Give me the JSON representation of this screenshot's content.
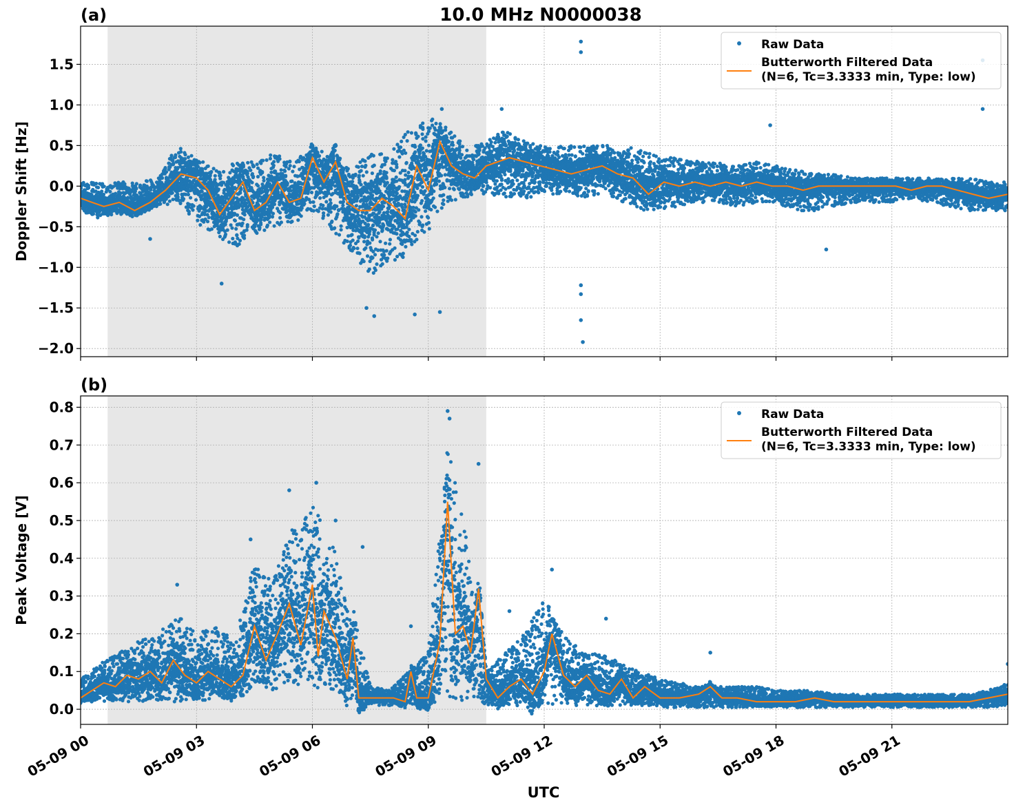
{
  "figure": {
    "title": "10.0 MHz N0000038",
    "xlabel": "UTC"
  },
  "colors": {
    "raw": "#1f77b4",
    "filtered": "#ff7f0e",
    "shade": "#e7e7e7",
    "grid": "#b0b0b0"
  },
  "chart_data": [
    {
      "type": "scatter",
      "panel_label": "(a)",
      "ylabel": "Doppler Shift [Hz]",
      "x_unit": "UTC hour of 2024-05-09 (0-24)",
      "xlim": [
        0,
        24
      ],
      "ylim": [
        -2.1,
        1.97
      ],
      "xticks": [
        0,
        3,
        6,
        9,
        12,
        15,
        18,
        21
      ],
      "xtick_labels": [
        "05-09 00",
        "05-09 03",
        "05-09 06",
        "05-09 09",
        "05-09 12",
        "05-09 15",
        "05-09 18",
        "05-09 21"
      ],
      "yticks": [
        -2.0,
        -1.5,
        -1.0,
        -0.5,
        0.0,
        0.5,
        1.0,
        1.5
      ],
      "ytick_labels": [
        "−2.0",
        "−1.5",
        "−1.0",
        "−0.5",
        "0.0",
        "0.5",
        "1.0",
        "1.5"
      ],
      "grid": true,
      "shaded_interval": [
        0.7,
        10.5
      ],
      "legend": {
        "placement": "top-right",
        "entries": [
          "Raw Data",
          "Butterworth Filtered Data",
          "(N=6, Tc=3.3333 min, Type: low)"
        ]
      },
      "series": [
        {
          "name": "Raw Data",
          "kind": "envelope",
          "x": [
            0,
            0.5,
            1,
            1.5,
            2,
            2.5,
            3,
            3.5,
            4,
            4.5,
            5,
            5.5,
            6,
            6.5,
            7,
            7.5,
            8,
            8.5,
            9,
            9.5,
            10,
            10.5,
            11,
            11.5,
            12,
            12.5,
            13,
            13.5,
            14,
            14.5,
            15,
            15.5,
            16,
            16.5,
            17,
            17.5,
            18,
            18.5,
            19,
            19.5,
            20,
            20.5,
            21,
            21.5,
            22,
            22.5,
            23,
            23.5,
            24
          ],
          "low": [
            -0.3,
            -0.4,
            -0.35,
            -0.3,
            -0.25,
            -0.2,
            -0.45,
            -0.6,
            -0.75,
            -0.6,
            -0.5,
            -0.45,
            -0.35,
            -0.55,
            -0.8,
            -1.1,
            -0.95,
            -0.85,
            -0.55,
            -0.2,
            -0.15,
            -0.1,
            -0.15,
            -0.15,
            -0.1,
            -0.1,
            -0.15,
            -0.1,
            -0.2,
            -0.3,
            -0.3,
            -0.25,
            -0.2,
            -0.2,
            -0.25,
            -0.2,
            -0.2,
            -0.3,
            -0.3,
            -0.25,
            -0.2,
            -0.2,
            -0.2,
            -0.15,
            -0.2,
            -0.25,
            -0.3,
            -0.3,
            -0.3
          ],
          "high": [
            0.05,
            0.05,
            0.05,
            0.05,
            0.1,
            0.5,
            0.35,
            0.2,
            0.3,
            0.3,
            0.4,
            0.3,
            0.5,
            0.35,
            0.25,
            0.4,
            0.4,
            0.7,
            0.85,
            0.75,
            0.45,
            0.55,
            0.7,
            0.55,
            0.5,
            0.5,
            0.5,
            0.5,
            0.5,
            0.45,
            0.35,
            0.35,
            0.3,
            0.3,
            0.25,
            0.3,
            0.25,
            0.2,
            0.15,
            0.15,
            0.1,
            0.1,
            0.1,
            0.1,
            0.1,
            0.1,
            0.1,
            0.05,
            0.05
          ]
        },
        {
          "name": "Raw Data",
          "kind": "outliers",
          "x": [
            1.8,
            3.65,
            7.4,
            7.6,
            8.65,
            9.3,
            9.35,
            10.9,
            12.95,
            12.95,
            12.95,
            12.95,
            12.95,
            13.0,
            17.85,
            19.3,
            23.35,
            23.35
          ],
          "y": [
            -0.65,
            -1.2,
            -1.5,
            -1.6,
            -1.58,
            -1.55,
            0.95,
            0.95,
            1.78,
            1.65,
            -1.22,
            -1.33,
            -1.65,
            -1.92,
            0.75,
            -0.78,
            0.95,
            1.55
          ]
        },
        {
          "name": "Butterworth Filtered Data",
          "kind": "line",
          "x": [
            0,
            0.3,
            0.6,
            1.0,
            1.4,
            1.8,
            2.2,
            2.6,
            3.0,
            3.3,
            3.6,
            3.9,
            4.2,
            4.5,
            4.8,
            5.1,
            5.4,
            5.7,
            6.0,
            6.3,
            6.6,
            6.9,
            7.2,
            7.5,
            7.8,
            8.1,
            8.4,
            8.7,
            9.0,
            9.3,
            9.6,
            9.9,
            10.2,
            10.5,
            10.8,
            11.1,
            11.5,
            11.9,
            12.3,
            12.7,
            13.1,
            13.5,
            13.9,
            14.3,
            14.7,
            15.1,
            15.5,
            15.9,
            16.3,
            16.7,
            17.1,
            17.5,
            17.9,
            18.3,
            18.7,
            19.1,
            19.5,
            19.9,
            20.3,
            20.7,
            21.1,
            21.5,
            21.9,
            22.3,
            22.7,
            23.1,
            23.5,
            24
          ],
          "y": [
            -0.15,
            -0.2,
            -0.25,
            -0.2,
            -0.3,
            -0.2,
            -0.05,
            0.15,
            0.1,
            -0.05,
            -0.35,
            -0.15,
            0.05,
            -0.3,
            -0.2,
            0.05,
            -0.2,
            -0.15,
            0.35,
            0.05,
            0.3,
            -0.2,
            -0.3,
            -0.3,
            -0.15,
            -0.25,
            -0.4,
            0.25,
            -0.05,
            0.55,
            0.25,
            0.15,
            0.1,
            0.25,
            0.3,
            0.35,
            0.3,
            0.25,
            0.2,
            0.15,
            0.2,
            0.25,
            0.15,
            0.1,
            -0.1,
            0.05,
            0.0,
            0.05,
            0.0,
            0.05,
            0.0,
            0.05,
            0.0,
            0.0,
            -0.05,
            0.0,
            0.0,
            0.0,
            0.0,
            0.0,
            0.0,
            -0.05,
            0.0,
            0.0,
            -0.05,
            -0.1,
            -0.15,
            -0.1
          ]
        }
      ]
    },
    {
      "type": "scatter",
      "panel_label": "(b)",
      "ylabel": "Peak Voltage [V]",
      "x_unit": "UTC hour of 2024-05-09 (0-24)",
      "xlim": [
        0,
        24
      ],
      "ylim": [
        -0.04,
        0.83
      ],
      "xticks": [
        0,
        3,
        6,
        9,
        12,
        15,
        18,
        21
      ],
      "xtick_labels": [
        "05-09 00",
        "05-09 03",
        "05-09 06",
        "05-09 09",
        "05-09 12",
        "05-09 15",
        "05-09 18",
        "05-09 21"
      ],
      "yticks": [
        0.0,
        0.1,
        0.2,
        0.3,
        0.4,
        0.5,
        0.6,
        0.7,
        0.8
      ],
      "ytick_labels": [
        "0.0",
        "0.1",
        "0.2",
        "0.3",
        "0.4",
        "0.5",
        "0.6",
        "0.7",
        "0.8"
      ],
      "grid": true,
      "shaded_interval": [
        0.7,
        10.5
      ],
      "legend": {
        "placement": "top-right",
        "entries": [
          "Raw Data",
          "Butterworth Filtered Data",
          "(N=6, Tc=3.3333 min, Type: low)"
        ]
      },
      "series": [
        {
          "name": "Raw Data",
          "kind": "envelope",
          "x": [
            0,
            0.5,
            1,
            1.5,
            2,
            2.5,
            3,
            3.5,
            4,
            4.5,
            5,
            5.5,
            6,
            6.5,
            7,
            7.5,
            8,
            8.5,
            9,
            9.5,
            10,
            10.5,
            11,
            11.5,
            12,
            12.5,
            13,
            13.5,
            14,
            14.5,
            15,
            15.5,
            16,
            16.5,
            17,
            17.5,
            18,
            18.5,
            19,
            19.5,
            20,
            20.5,
            21,
            21.5,
            22,
            22.5,
            23,
            23.5,
            24
          ],
          "low": [
            0.02,
            0.02,
            0.02,
            0.02,
            0.02,
            0.02,
            0.02,
            0.03,
            0.03,
            0.05,
            0.05,
            0.06,
            0.06,
            0.05,
            0.02,
            0.01,
            0.01,
            0.01,
            0.01,
            0.02,
            0.02,
            0.01,
            0.01,
            0.01,
            0.01,
            0.01,
            0.01,
            0.01,
            0.01,
            0.01,
            0.005,
            0.005,
            0.005,
            0.005,
            0.005,
            0.005,
            0.005,
            0.005,
            0.005,
            0.005,
            0.005,
            0.005,
            0.005,
            0.005,
            0.005,
            0.005,
            0.005,
            0.005,
            0.01
          ],
          "high": [
            0.08,
            0.12,
            0.15,
            0.18,
            0.2,
            0.25,
            0.2,
            0.22,
            0.18,
            0.4,
            0.35,
            0.5,
            0.55,
            0.45,
            0.3,
            0.06,
            0.05,
            0.1,
            0.15,
            0.7,
            0.45,
            0.1,
            0.15,
            0.2,
            0.3,
            0.2,
            0.15,
            0.15,
            0.12,
            0.1,
            0.08,
            0.07,
            0.06,
            0.06,
            0.06,
            0.06,
            0.05,
            0.05,
            0.05,
            0.04,
            0.04,
            0.04,
            0.04,
            0.04,
            0.04,
            0.04,
            0.04,
            0.05,
            0.07
          ]
        },
        {
          "name": "Raw Data",
          "kind": "outliers",
          "x": [
            2.5,
            4.4,
            5.4,
            6.1,
            6.6,
            7.3,
            8.55,
            9.5,
            9.55,
            10.3,
            11.1,
            12.2,
            13.6,
            16.3,
            24.0
          ],
          "y": [
            0.33,
            0.45,
            0.58,
            0.6,
            0.5,
            0.43,
            0.22,
            0.79,
            0.77,
            0.65,
            0.26,
            0.37,
            0.24,
            0.15,
            0.12
          ]
        },
        {
          "name": "Butterworth Filtered Data",
          "kind": "line",
          "x": [
            0,
            0.3,
            0.6,
            0.9,
            1.2,
            1.5,
            1.8,
            2.1,
            2.4,
            2.7,
            3.0,
            3.3,
            3.6,
            3.9,
            4.2,
            4.5,
            4.8,
            5.1,
            5.4,
            5.7,
            6.0,
            6.15,
            6.3,
            6.6,
            6.9,
            7.05,
            7.2,
            7.5,
            7.8,
            8.1,
            8.4,
            8.55,
            8.7,
            9.0,
            9.3,
            9.5,
            9.7,
            9.9,
            10.1,
            10.3,
            10.5,
            10.8,
            11.1,
            11.4,
            11.7,
            12.0,
            12.2,
            12.5,
            12.8,
            13.1,
            13.4,
            13.7,
            14.0,
            14.3,
            14.6,
            15.0,
            15.5,
            16.0,
            16.3,
            16.6,
            17.0,
            17.5,
            18.0,
            18.5,
            19.0,
            19.5,
            20.0,
            20.5,
            21.0,
            21.5,
            22.0,
            22.5,
            23.0,
            23.5,
            24
          ],
          "y": [
            0.03,
            0.05,
            0.07,
            0.06,
            0.09,
            0.08,
            0.1,
            0.07,
            0.13,
            0.09,
            0.07,
            0.1,
            0.08,
            0.06,
            0.09,
            0.22,
            0.13,
            0.2,
            0.28,
            0.17,
            0.33,
            0.14,
            0.26,
            0.19,
            0.08,
            0.19,
            0.03,
            0.03,
            0.03,
            0.03,
            0.02,
            0.1,
            0.03,
            0.03,
            0.18,
            0.55,
            0.2,
            0.22,
            0.15,
            0.32,
            0.08,
            0.03,
            0.06,
            0.08,
            0.04,
            0.1,
            0.2,
            0.09,
            0.06,
            0.09,
            0.05,
            0.04,
            0.08,
            0.03,
            0.06,
            0.03,
            0.03,
            0.04,
            0.06,
            0.03,
            0.03,
            0.02,
            0.02,
            0.02,
            0.03,
            0.02,
            0.02,
            0.02,
            0.02,
            0.02,
            0.02,
            0.02,
            0.02,
            0.03,
            0.04
          ]
        }
      ]
    }
  ]
}
